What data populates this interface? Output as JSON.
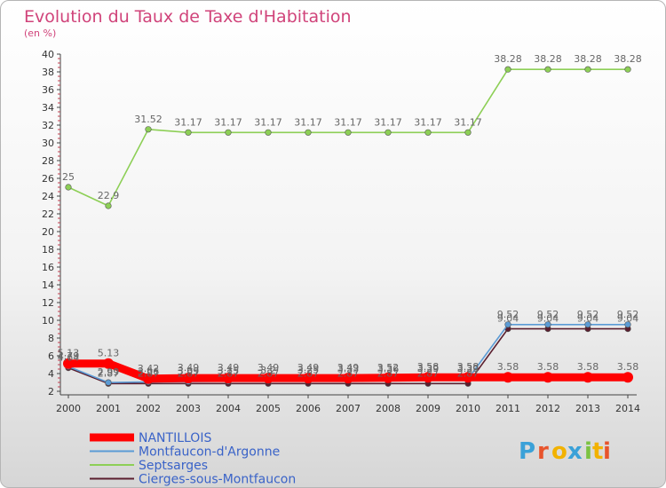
{
  "chart_data": {
    "type": "line",
    "title": "Evolution du Taux de Taxe d'Habitation",
    "ylabel": "(en %)",
    "xlabel": "",
    "ylim": [
      2,
      40
    ],
    "yticks": [
      "2",
      "4",
      "6",
      "8",
      "10",
      "12",
      "14",
      "16",
      "18",
      "20",
      "22",
      "24",
      "26",
      "28",
      "30",
      "32",
      "34",
      "36",
      "38",
      "40"
    ],
    "categories": [
      "2000",
      "2001",
      "2002",
      "2003",
      "2004",
      "2005",
      "2006",
      "2007",
      "2008",
      "2009",
      "2010",
      "2011",
      "2012",
      "2013",
      "2014"
    ],
    "series": [
      {
        "name": "Cierges-sous-Montfaucon",
        "color": "#5a1e2e",
        "values": [
          4.64,
          2.87,
          2.87,
          2.87,
          2.87,
          2.87,
          2.87,
          2.87,
          2.87,
          2.87,
          2.87,
          9.04,
          9.04,
          9.04,
          9.04
        ]
      },
      {
        "name": "Montfaucon-d'Argonne",
        "color": "#5b9bd5",
        "values": [
          4.79,
          2.99,
          3.06,
          3.09,
          3.15,
          3.2,
          3.25,
          3.33,
          3.36,
          3.39,
          3.39,
          9.52,
          9.52,
          9.52,
          9.52
        ]
      },
      {
        "name": "Septsarges",
        "color": "#8dcf56",
        "values": [
          25,
          22.9,
          31.52,
          31.17,
          31.17,
          31.17,
          31.17,
          31.17,
          31.17,
          31.17,
          31.17,
          38.28,
          38.28,
          38.28,
          38.28
        ]
      },
      {
        "name": "NANTILLOIS",
        "color": "#ff0000",
        "values": [
          5.13,
          5.13,
          3.42,
          3.49,
          3.49,
          3.49,
          3.49,
          3.49,
          3.52,
          3.58,
          3.58,
          3.58,
          3.58,
          3.58,
          3.58
        ]
      }
    ],
    "data_labels": {
      "Cierges-sous-Montfaucon": [
        "4.64",
        "2.87",
        "2.87",
        "2.87",
        "2.87",
        "2.87",
        "2.87",
        "2.87",
        "2.87",
        "2.87",
        "2.87",
        "9.04",
        "9.04",
        "9.04",
        "9.04"
      ],
      "Montfaucon-d'Argonne": [
        "4.79",
        "2.99",
        "3.06",
        "3.09",
        "3.15",
        "3.2",
        "3.25",
        "3.33",
        "3.36",
        "3.39",
        "3.39",
        "9.52",
        "9.52",
        "9.52",
        "9.52"
      ],
      "Septsarges": [
        "25",
        "22.9",
        "31.52",
        "31.17",
        "31.17",
        "31.17",
        "31.17",
        "31.17",
        "31.17",
        "31.17",
        "31.17",
        "38.28",
        "38.28",
        "38.28",
        "38.28"
      ],
      "NANTILLOIS": [
        "5.13",
        "5.13",
        "3.42",
        "3.49",
        "3.49",
        "3.49",
        "3.49",
        "3.49",
        "3.52",
        "3.58",
        "3.58",
        "3.58",
        "3.58",
        "3.58",
        "3.58"
      ]
    },
    "legend": [
      "NANTILLOIS",
      "Montfaucon-d'Argonne",
      "Septsarges",
      "Cierges-sous-Montfaucon"
    ],
    "legend_position": "bottom-left",
    "grid": false
  },
  "brand": {
    "letters": [
      "P",
      "r",
      "o",
      "x",
      "i",
      "t",
      "i"
    ],
    "colors": [
      "#3aa1d8",
      "#e8542c",
      "#f2b200",
      "#3aa1d8",
      "#7cc242",
      "#f2b200",
      "#e8542c"
    ]
  }
}
